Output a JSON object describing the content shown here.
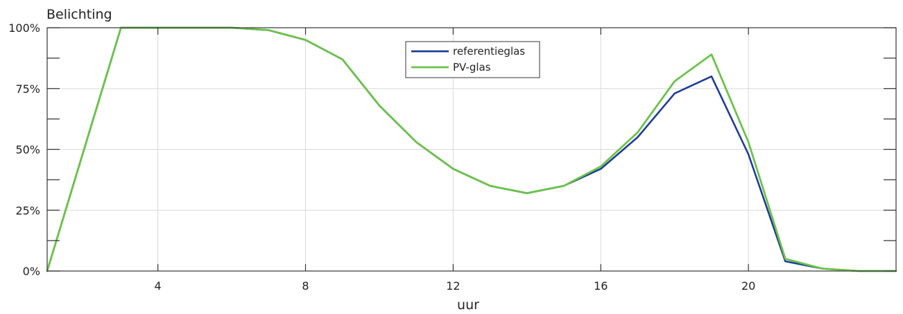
{
  "chart_data": {
    "type": "line",
    "title": "",
    "ylabel": "Belichting",
    "xlabel": "uur",
    "xlim": [
      1,
      24
    ],
    "ylim": [
      0,
      100
    ],
    "x_ticks": [
      4,
      8,
      12,
      16,
      20
    ],
    "y_ticks": [
      0,
      25,
      50,
      75,
      100
    ],
    "y_tick_labels": [
      "0%",
      "25%",
      "50%",
      "75%",
      "100%"
    ],
    "grid": true,
    "legend_position": "top-center",
    "x": [
      1,
      2,
      3,
      4,
      5,
      6,
      7,
      8,
      9,
      10,
      11,
      12,
      13,
      14,
      15,
      16,
      17,
      18,
      19,
      20,
      21,
      22,
      23,
      24
    ],
    "series": [
      {
        "name": "referentieglas",
        "color": "#1f3c99",
        "values": [
          0,
          50,
          100,
          100,
          100,
          100,
          99,
          95,
          87,
          68,
          53,
          42,
          35,
          32,
          35,
          42,
          55,
          73,
          80,
          48,
          4,
          1,
          0,
          0
        ]
      },
      {
        "name": "PV-glas",
        "color": "#6cc24a",
        "values": [
          0,
          50,
          100,
          100,
          100,
          100,
          99,
          95,
          87,
          68,
          53,
          42,
          35,
          32,
          35,
          43,
          57,
          78,
          89,
          53,
          5,
          1,
          0,
          0
        ]
      }
    ]
  }
}
